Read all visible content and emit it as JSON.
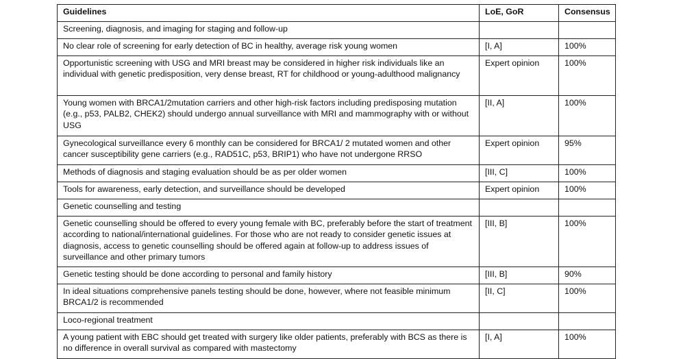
{
  "table": {
    "header": [
      "Guidelines",
      "LoE, GoR",
      "Consensus"
    ],
    "rows": [
      [
        "Screening, diagnosis, and imaging for staging and follow-up"
      ],
      [
        "No clear role of screening for early detection of BC in healthy, average risk young women",
        "[I, A]",
        "100%"
      ],
      [
        "Opportunistic screening with USG and MRI breast may be considered in higher risk individuals like an individual with genetic predisposition, very dense breast, RT for childhood or young-adulthood malignancy",
        "Expert opinion",
        "100%"
      ],
      [
        "Young women with BRCA1/2mutation carriers and other high-risk factors including predisposing mutation (e.g., p53, PALB2, CHEK2) should undergo annual surveillance with MRI and mammography with or without USG",
        "[II, A]",
        "100%"
      ],
      [
        "Gynecological surveillance every 6 monthly can be considered for BRCA1/ 2 mutated women and other cancer susceptibility gene carriers (e.g., RAD51C, p53, BRIP1) who have not undergone RRSO",
        "Expert opinion",
        "95%"
      ],
      [
        "Methods of diagnosis and staging evaluation should be as per older women",
        "[III, C]",
        "100%"
      ],
      [
        "Tools for awareness, early detection, and surveillance should be developed",
        "Expert opinion",
        "100%"
      ],
      [
        "Genetic counselling and testing"
      ],
      [
        "Genetic counselling should be offered to every young female with BC, preferably before the start of treatment according to national/international guidelines. For those who are not ready to consider genetic issues at diagnosis, access to genetic counselling should be offered again at follow-up to address issues of surveillance and other primary tumors",
        "[III, B]",
        "100%"
      ],
      [
        "Genetic testing should be done according to personal and family history",
        "[III, B]",
        "90%"
      ],
      [
        "In ideal situations comprehensive panels testing should be done, however, where not feasible minimum BRCA1/2 is recommended",
        "[II, C]",
        "100%"
      ],
      [
        "Loco-regional treatment"
      ],
      [
        "A young patient with EBC should get treated with surgery like older patients, preferably with BCS as there is no difference in overall survival as compared with mastectomy",
        "[I, A]",
        "100%"
      ]
    ]
  }
}
